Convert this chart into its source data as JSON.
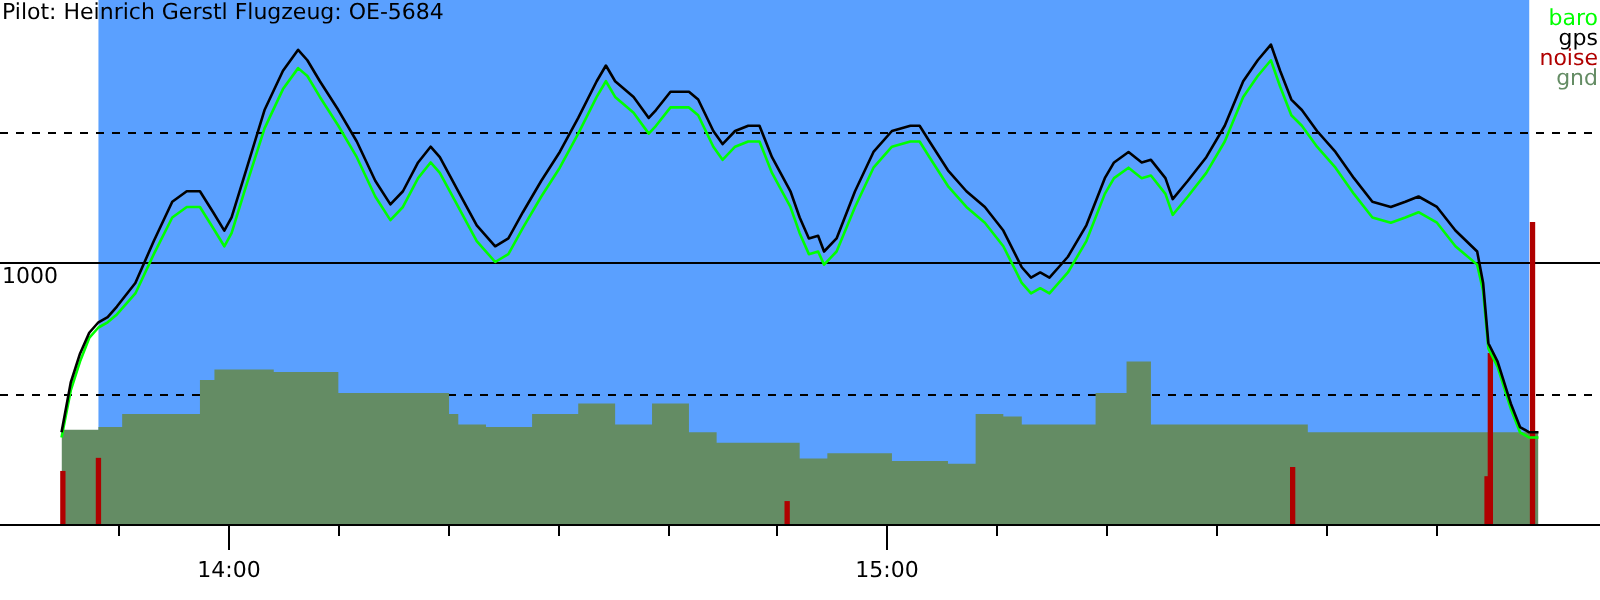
{
  "chart_data": {
    "type": "line",
    "title": "Pilot: Heinrich Gerstl Flugzeug: OE-5684",
    "xlim": [
      13.748,
      15.989
    ],
    "ylim": [
      0,
      2000
    ],
    "xticks": [
      {
        "value": 13.8333,
        "label": null
      },
      {
        "value": 14,
        "label": "14:00"
      },
      {
        "value": 14.1667,
        "label": null
      },
      {
        "value": 14.3333,
        "label": null
      },
      {
        "value": 14.5,
        "label": null
      },
      {
        "value": 14.6667,
        "label": null
      },
      {
        "value": 14.8333,
        "label": null
      },
      {
        "value": 15,
        "label": "15:00"
      },
      {
        "value": 15.1667,
        "label": null
      },
      {
        "value": 15.3333,
        "label": null
      },
      {
        "value": 15.5,
        "label": null
      },
      {
        "value": 15.6667,
        "label": null
      },
      {
        "value": 15.8333,
        "label": null
      }
    ],
    "yticks": [
      {
        "value": 500,
        "label": null
      },
      1000,
      {
        "value": 1500,
        "label": null
      }
    ],
    "grid": "y",
    "legend": "top right",
    "marker": "none",
    "line_style": "solid",
    "bands": [
      {
        "axis": "x",
        "from": 13.804,
        "to": 15.975,
        "color": "#5aa0ff"
      }
    ],
    "ref_lines": [
      {
        "axis": "y",
        "value": 1000,
        "color": "#000000",
        "line_style": "solid"
      }
    ],
    "x": [
      13.748,
      13.762,
      13.776,
      13.79,
      13.804,
      13.818,
      13.832,
      13.86,
      13.888,
      13.916,
      13.938,
      13.958,
      13.978,
      13.995,
      14.006,
      14.028,
      14.056,
      14.084,
      14.107,
      14.121,
      14.14,
      14.168,
      14.196,
      14.224,
      14.247,
      14.266,
      14.289,
      14.308,
      14.322,
      14.35,
      14.378,
      14.406,
      14.426,
      14.448,
      14.476,
      14.504,
      14.532,
      14.56,
      14.574,
      14.588,
      14.616,
      14.639,
      14.65,
      14.672,
      14.7,
      14.714,
      14.737,
      14.751,
      14.77,
      14.79,
      14.807,
      14.826,
      14.854,
      14.868,
      14.882,
      14.896,
      14.905,
      14.924,
      14.952,
      14.98,
      15.008,
      15.036,
      15.05,
      15.065,
      15.093,
      15.121,
      15.149,
      15.177,
      15.205,
      15.219,
      15.233,
      15.247,
      15.261,
      15.275,
      15.303,
      15.331,
      15.345,
      15.367,
      15.387,
      15.401,
      15.423,
      15.434,
      15.457,
      15.485,
      15.513,
      15.541,
      15.563,
      15.583,
      15.597,
      15.614,
      15.63,
      15.653,
      15.681,
      15.709,
      15.737,
      15.765,
      15.787,
      15.807,
      15.835,
      15.863,
      15.896,
      15.905,
      15.913,
      15.927,
      15.947,
      15.961,
      15.975,
      15.989
    ],
    "series": [
      {
        "name": "baro",
        "color": "#00ff00",
        "values": [
          330,
          510,
          620,
          710,
          750,
          770,
          800,
          880,
          1030,
          1170,
          1210,
          1210,
          1130,
          1060,
          1110,
          1290,
          1510,
          1660,
          1740,
          1710,
          1630,
          1520,
          1400,
          1250,
          1160,
          1210,
          1320,
          1380,
          1340,
          1210,
          1080,
          1000,
          1030,
          1130,
          1250,
          1360,
          1490,
          1630,
          1690,
          1630,
          1570,
          1490,
          1520,
          1590,
          1590,
          1560,
          1440,
          1390,
          1440,
          1460,
          1460,
          1340,
          1210,
          1110,
          1030,
          1040,
          990,
          1040,
          1210,
          1360,
          1440,
          1460,
          1460,
          1400,
          1290,
          1210,
          1150,
          1060,
          920,
          880,
          900,
          880,
          920,
          960,
          1080,
          1260,
          1320,
          1360,
          1320,
          1330,
          1260,
          1180,
          1250,
          1340,
          1460,
          1630,
          1710,
          1770,
          1670,
          1560,
          1520,
          1440,
          1360,
          1260,
          1170,
          1150,
          1170,
          1190,
          1150,
          1060,
          990,
          890,
          670,
          600,
          440,
          350,
          330,
          330
        ]
      },
      {
        "name": "gps",
        "color": "#000000",
        "values": [
          350,
          540,
          650,
          730,
          770,
          790,
          830,
          920,
          1080,
          1230,
          1270,
          1270,
          1190,
          1120,
          1170,
          1350,
          1580,
          1730,
          1810,
          1770,
          1690,
          1580,
          1460,
          1310,
          1220,
          1270,
          1380,
          1440,
          1400,
          1270,
          1140,
          1060,
          1090,
          1190,
          1310,
          1420,
          1550,
          1690,
          1750,
          1690,
          1630,
          1550,
          1580,
          1650,
          1650,
          1620,
          1500,
          1450,
          1500,
          1520,
          1520,
          1400,
          1270,
          1170,
          1090,
          1100,
          1040,
          1090,
          1270,
          1420,
          1500,
          1520,
          1520,
          1460,
          1350,
          1270,
          1210,
          1120,
          980,
          940,
          960,
          940,
          980,
          1020,
          1140,
          1320,
          1380,
          1420,
          1380,
          1390,
          1320,
          1240,
          1310,
          1400,
          1520,
          1690,
          1770,
          1830,
          1730,
          1620,
          1580,
          1500,
          1420,
          1320,
          1230,
          1210,
          1230,
          1250,
          1210,
          1120,
          1040,
          920,
          690,
          620,
          460,
          370,
          350,
          350
        ]
      },
      {
        "name": "noise",
        "type": "bar",
        "color": "#b00000",
        "x": [
          13.75,
          13.804,
          14.849,
          15.616,
          15.911,
          15.916,
          15.98
        ],
        "values": [
          200,
          250,
          85,
          215,
          180,
          650,
          1150
        ]
      },
      {
        "name": "gnd",
        "type": "area",
        "color": "#648c64",
        "x": [
          13.748,
          13.804,
          13.84,
          13.958,
          13.98,
          14.07,
          14.168,
          14.336,
          14.35,
          14.392,
          14.462,
          14.532,
          14.588,
          14.644,
          14.7,
          14.742,
          14.868,
          14.91,
          15.008,
          15.093,
          15.135,
          15.177,
          15.205,
          15.317,
          15.364,
          15.401,
          15.639,
          15.681,
          15.989
        ],
        "values": [
          310,
          360,
          370,
          420,
          550,
          590,
          580,
          500,
          420,
          380,
          370,
          420,
          460,
          380,
          460,
          350,
          310,
          250,
          270,
          240,
          230,
          420,
          410,
          380,
          500,
          620,
          380,
          350,
          350
        ]
      }
    ]
  }
}
